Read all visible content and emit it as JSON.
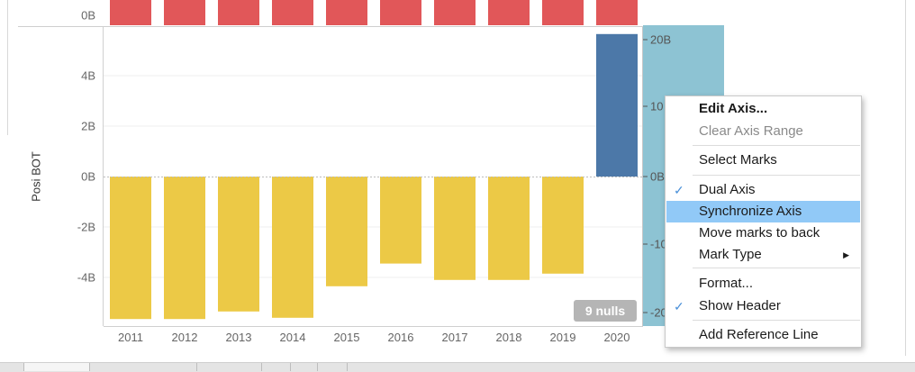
{
  "chart_data": {
    "type": "bar",
    "categories": [
      "2011",
      "2012",
      "2013",
      "2014",
      "2015",
      "2016",
      "2017",
      "2018",
      "2019",
      "2020"
    ],
    "series": [
      {
        "values": [
          -5.65,
          -5.65,
          -5.35,
          -5.6,
          -4.35,
          -3.45,
          -4.1,
          -4.1,
          -3.85,
          null
        ]
      },
      {
        "values": [
          null,
          null,
          null,
          null,
          null,
          null,
          null,
          null,
          null,
          5.65
        ]
      }
    ],
    "ylabel": "Posi BOT",
    "yticks": [
      "4B",
      "2B",
      "0B",
      "-2B",
      "-4B"
    ],
    "top_pane_tick": "0B",
    "secondary_ticks": [
      "20B",
      "10",
      "0B",
      "-10",
      "-20"
    ],
    "ylim": [
      -6.1,
      5.9
    ],
    "colors": {
      "negative": "#ecc946",
      "positive": "#4c78a8",
      "top_pane": "#e15759",
      "secondary": "#8dc3d3"
    },
    "null_badge": "9 nulls"
  },
  "context_menu": {
    "items": [
      {
        "label": "Edit Axis...",
        "bold": true,
        "checked": false,
        "highlighted": false,
        "disabled": false,
        "submenu": false
      },
      {
        "label": "Clear Axis Range",
        "bold": false,
        "checked": false,
        "highlighted": false,
        "disabled": true,
        "submenu": false
      },
      {
        "label": "Select Marks",
        "bold": false,
        "checked": false,
        "highlighted": false,
        "disabled": false,
        "submenu": false
      },
      {
        "label": "Dual Axis",
        "bold": false,
        "checked": true,
        "highlighted": false,
        "disabled": false,
        "submenu": false
      },
      {
        "label": "Synchronize Axis",
        "bold": false,
        "checked": false,
        "highlighted": true,
        "disabled": false,
        "submenu": false
      },
      {
        "label": "Move marks to back",
        "bold": false,
        "checked": false,
        "highlighted": false,
        "disabled": false,
        "submenu": false
      },
      {
        "label": "Mark Type",
        "bold": false,
        "checked": false,
        "highlighted": false,
        "disabled": false,
        "submenu": true
      },
      {
        "label": "Format...",
        "bold": false,
        "checked": false,
        "highlighted": false,
        "disabled": false,
        "submenu": false
      },
      {
        "label": "Show Header",
        "bold": false,
        "checked": true,
        "highlighted": false,
        "disabled": false,
        "submenu": false
      },
      {
        "label": "Add Reference Line",
        "bold": false,
        "checked": false,
        "highlighted": false,
        "disabled": false,
        "submenu": false
      }
    ],
    "check_glyph": "✓",
    "arrow_glyph": "▶"
  }
}
